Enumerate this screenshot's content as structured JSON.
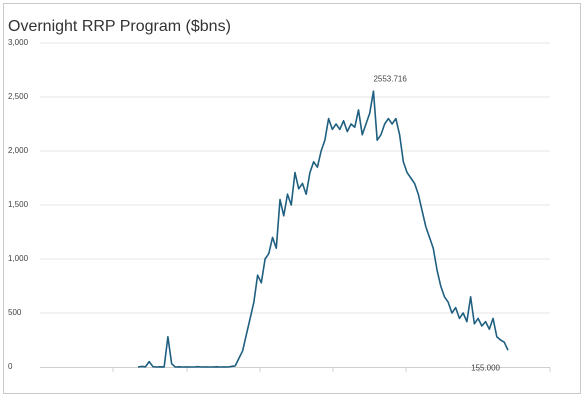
{
  "chart_data": {
    "type": "line",
    "title": "Overnight RRP Program ($bns)",
    "series": [
      {
        "color": "#1f5f80",
        "values": [
          0,
          5,
          2,
          50,
          3,
          0,
          2,
          1,
          280,
          30,
          0,
          2,
          0,
          1,
          0,
          0,
          3,
          0,
          1,
          0,
          0,
          2,
          0,
          1,
          0,
          5,
          10,
          80,
          150,
          300,
          450,
          600,
          850,
          780,
          1000,
          1050,
          1200,
          1100,
          1550,
          1400,
          1600,
          1500,
          1800,
          1650,
          1700,
          1600,
          1800,
          1900,
          1850,
          2000,
          2100,
          2300,
          2200,
          2250,
          2200,
          2280,
          2180,
          2250,
          2220,
          2380,
          2150,
          2250,
          2350,
          2553.716,
          2100,
          2150,
          2250,
          2300,
          2250,
          2300,
          2150,
          1900,
          1800,
          1750,
          1700,
          1600,
          1450,
          1300,
          1200,
          1100,
          900,
          750,
          650,
          600,
          500,
          550,
          450,
          500,
          420,
          650,
          400,
          450,
          380,
          420,
          350,
          450,
          280,
          250,
          230,
          155
        ],
        "value_labels": [
          null,
          null,
          null,
          null,
          null,
          null,
          null,
          null,
          null,
          null,
          null,
          null,
          null,
          null,
          null,
          null,
          null,
          null,
          null,
          null,
          null,
          null,
          null,
          null,
          null,
          null,
          null,
          null,
          null,
          null,
          null,
          null,
          null,
          null,
          null,
          null,
          null,
          null,
          null,
          null,
          null,
          null,
          null,
          null,
          null,
          null,
          null,
          null,
          null,
          null,
          null,
          null,
          null,
          null,
          null,
          null,
          null,
          null,
          null,
          null,
          null,
          null,
          null,
          "2553.716",
          null,
          null,
          null,
          null,
          null,
          null,
          null,
          null,
          null,
          null,
          null,
          null,
          null,
          null,
          null,
          null,
          null,
          null,
          null,
          null,
          null,
          null,
          null,
          null,
          null,
          null,
          null,
          null,
          null,
          null,
          null,
          null,
          null,
          null,
          null,
          "155.000"
        ]
      }
    ],
    "ylim": [
      0,
      3000
    ],
    "yticks": [
      0,
      500,
      {
        "value": 1000,
        "label": "1,000"
      },
      {
        "value": 1500,
        "label": "1,500"
      },
      {
        "value": 2000,
        "label": "2,000"
      },
      {
        "value": 2500,
        "label": "2,500"
      },
      {
        "value": 3000,
        "label": "3,000"
      }
    ],
    "grid": true
  }
}
